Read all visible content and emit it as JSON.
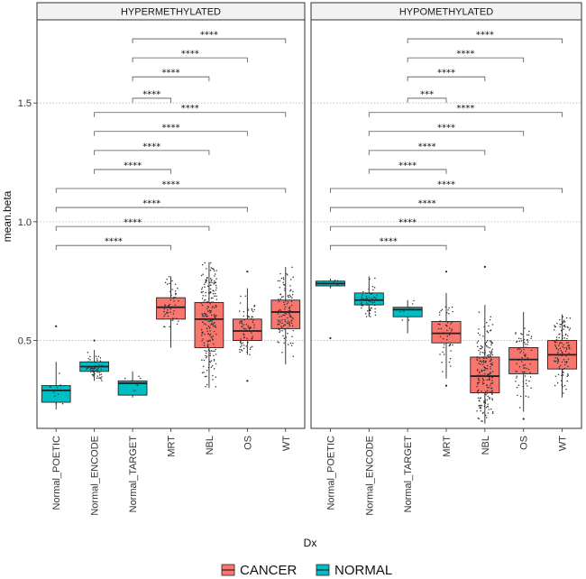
{
  "chart_data": {
    "type": "boxplot",
    "xlabel": "Dx",
    "ylabel": "mean.beta",
    "y_ticks": [
      0.5,
      1.0,
      1.5
    ],
    "y_tick_labels": [
      "0.5",
      "1.0",
      "1.5"
    ],
    "ylim": [
      0.13,
      1.85
    ],
    "categories": [
      "Normal_POETIC",
      "Normal_ENCODE",
      "Normal_TARGET",
      "MRT",
      "NBL",
      "OS",
      "WT"
    ],
    "groups": {
      "Normal_POETIC": "NORMAL",
      "Normal_ENCODE": "NORMAL",
      "Normal_TARGET": "NORMAL",
      "MRT": "CANCER",
      "NBL": "CANCER",
      "OS": "CANCER",
      "WT": "CANCER"
    },
    "colors": {
      "CANCER": "#F8766D",
      "NORMAL": "#00BFC4"
    },
    "legend": {
      "position": "bottom",
      "entries": [
        "CANCER",
        "NORMAL"
      ]
    },
    "grid": "major-y-dotted",
    "panels": [
      {
        "title": "HYPERMETHYLATED",
        "boxes": [
          {
            "category": "Normal_POETIC",
            "q1": 0.24,
            "median": 0.29,
            "q3": 0.31,
            "whisker_low": 0.21,
            "whisker_high": 0.41,
            "outliers": [
              0.56
            ],
            "n_points": 12
          },
          {
            "category": "Normal_ENCODE",
            "q1": 0.37,
            "median": 0.39,
            "q3": 0.41,
            "whisker_low": 0.33,
            "whisker_high": 0.46,
            "outliers": [
              0.5
            ],
            "n_points": 60
          },
          {
            "category": "Normal_TARGET",
            "q1": 0.27,
            "median": 0.32,
            "q3": 0.33,
            "whisker_low": 0.26,
            "whisker_high": 0.37,
            "outliers": [],
            "n_points": 8
          },
          {
            "category": "MRT",
            "q1": 0.59,
            "median": 0.64,
            "q3": 0.68,
            "whisker_low": 0.47,
            "whisker_high": 0.77,
            "outliers": [],
            "n_points": 50
          },
          {
            "category": "NBL",
            "q1": 0.47,
            "median": 0.59,
            "q3": 0.66,
            "whisker_low": 0.3,
            "whisker_high": 0.83,
            "outliers": [],
            "n_points": 220
          },
          {
            "category": "OS",
            "q1": 0.5,
            "median": 0.54,
            "q3": 0.59,
            "whisker_low": 0.44,
            "whisker_high": 0.72,
            "outliers": [
              0.33,
              0.79
            ],
            "n_points": 80
          },
          {
            "category": "WT",
            "q1": 0.55,
            "median": 0.62,
            "q3": 0.67,
            "whisker_low": 0.4,
            "whisker_high": 0.81,
            "outliers": [],
            "n_points": 120
          }
        ],
        "comparisons": [
          {
            "from": "Normal_POETIC",
            "to": "MRT",
            "label": "****",
            "y": 0.9
          },
          {
            "from": "Normal_POETIC",
            "to": "NBL",
            "label": "****",
            "y": 0.98
          },
          {
            "from": "Normal_POETIC",
            "to": "OS",
            "label": "****",
            "y": 1.06
          },
          {
            "from": "Normal_POETIC",
            "to": "WT",
            "label": "****",
            "y": 1.14
          },
          {
            "from": "Normal_ENCODE",
            "to": "MRT",
            "label": "****",
            "y": 1.22
          },
          {
            "from": "Normal_ENCODE",
            "to": "NBL",
            "label": "****",
            "y": 1.3
          },
          {
            "from": "Normal_ENCODE",
            "to": "OS",
            "label": "****",
            "y": 1.38
          },
          {
            "from": "Normal_ENCODE",
            "to": "WT",
            "label": "****",
            "y": 1.46
          },
          {
            "from": "Normal_TARGET",
            "to": "MRT",
            "label": "****",
            "y": 1.52
          },
          {
            "from": "Normal_TARGET",
            "to": "NBL",
            "label": "****",
            "y": 1.61
          },
          {
            "from": "Normal_TARGET",
            "to": "OS",
            "label": "****",
            "y": 1.69
          },
          {
            "from": "Normal_TARGET",
            "to": "WT",
            "label": "****",
            "y": 1.77
          }
        ]
      },
      {
        "title": "HYPOMETHYLATED",
        "boxes": [
          {
            "category": "Normal_POETIC",
            "q1": 0.73,
            "median": 0.74,
            "q3": 0.75,
            "whisker_low": 0.72,
            "whisker_high": 0.76,
            "outliers": [
              0.51
            ],
            "n_points": 12
          },
          {
            "category": "Normal_ENCODE",
            "q1": 0.65,
            "median": 0.67,
            "q3": 0.7,
            "whisker_low": 0.6,
            "whisker_high": 0.77,
            "outliers": [],
            "n_points": 60
          },
          {
            "category": "Normal_TARGET",
            "q1": 0.6,
            "median": 0.63,
            "q3": 0.64,
            "whisker_low": 0.53,
            "whisker_high": 0.67,
            "outliers": [],
            "n_points": 8
          },
          {
            "category": "MRT",
            "q1": 0.49,
            "median": 0.53,
            "q3": 0.58,
            "whisker_low": 0.34,
            "whisker_high": 0.7,
            "outliers": [
              0.31,
              0.79
            ],
            "n_points": 50
          },
          {
            "category": "NBL",
            "q1": 0.28,
            "median": 0.35,
            "q3": 0.43,
            "whisker_low": 0.15,
            "whisker_high": 0.65,
            "outliers": [
              0.81
            ],
            "n_points": 220
          },
          {
            "category": "OS",
            "q1": 0.36,
            "median": 0.42,
            "q3": 0.47,
            "whisker_low": 0.2,
            "whisker_high": 0.62,
            "outliers": [
              0.17
            ],
            "n_points": 80
          },
          {
            "category": "WT",
            "q1": 0.38,
            "median": 0.44,
            "q3": 0.5,
            "whisker_low": 0.26,
            "whisker_high": 0.61,
            "outliers": [],
            "n_points": 120
          }
        ],
        "comparisons": [
          {
            "from": "Normal_POETIC",
            "to": "MRT",
            "label": "****",
            "y": 0.9
          },
          {
            "from": "Normal_POETIC",
            "to": "NBL",
            "label": "****",
            "y": 0.98
          },
          {
            "from": "Normal_POETIC",
            "to": "OS",
            "label": "****",
            "y": 1.06
          },
          {
            "from": "Normal_POETIC",
            "to": "WT",
            "label": "****",
            "y": 1.14
          },
          {
            "from": "Normal_ENCODE",
            "to": "MRT",
            "label": "****",
            "y": 1.22
          },
          {
            "from": "Normal_ENCODE",
            "to": "NBL",
            "label": "****",
            "y": 1.3
          },
          {
            "from": "Normal_ENCODE",
            "to": "OS",
            "label": "****",
            "y": 1.38
          },
          {
            "from": "Normal_ENCODE",
            "to": "WT",
            "label": "****",
            "y": 1.46
          },
          {
            "from": "Normal_TARGET",
            "to": "MRT",
            "label": "***",
            "y": 1.52
          },
          {
            "from": "Normal_TARGET",
            "to": "NBL",
            "label": "****",
            "y": 1.61
          },
          {
            "from": "Normal_TARGET",
            "to": "OS",
            "label": "****",
            "y": 1.69
          },
          {
            "from": "Normal_TARGET",
            "to": "WT",
            "label": "****",
            "y": 1.77
          }
        ]
      }
    ]
  }
}
